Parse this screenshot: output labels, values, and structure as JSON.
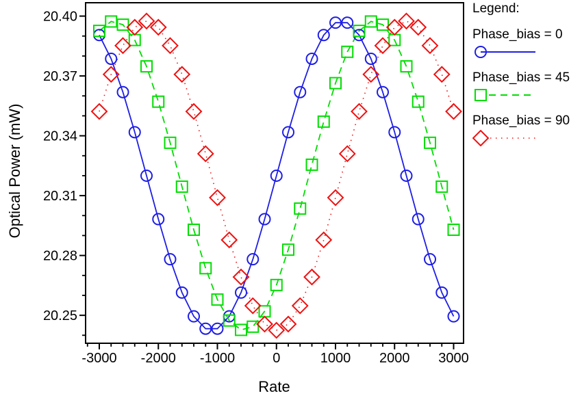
{
  "chart_data": {
    "type": "line",
    "title": "",
    "xlabel": "Rate",
    "ylabel": "Optical Power (mW)",
    "legend_title": "Legend:",
    "legend_position": "right",
    "grid": false,
    "background_color": "#ffffff",
    "axis_color": "#000000",
    "xlim": [
      -3232,
      3168
    ],
    "ylim": [
      20.236,
      20.4067
    ],
    "x_ticks": [
      -3000,
      -2000,
      -1000,
      0,
      1000,
      2000,
      3000
    ],
    "x_tick_labels": [
      "-3000",
      "-2000",
      "-1000",
      "0",
      "1000",
      "2000",
      "3000"
    ],
    "x_minor_step": 200,
    "y_ticks": [
      20.25,
      20.28,
      20.31,
      20.34,
      20.37,
      20.4
    ],
    "y_tick_labels": [
      "20.25",
      "20.28",
      "20.31",
      "20.34",
      "20.37",
      "20.40"
    ],
    "y_minor_step": 0.01,
    "x": [
      -3000,
      -2800,
      -2600,
      -2400,
      -2200,
      -2000,
      -1800,
      -1600,
      -1400,
      -1200,
      -1000,
      -800,
      -600,
      -400,
      -200,
      0,
      200,
      400,
      600,
      800,
      1000,
      1200,
      1400,
      1600,
      1800,
      2000,
      2200,
      2400,
      2600,
      2800,
      3000
    ],
    "series": [
      {
        "name": "Phase_bias = 0",
        "color": "#1e1ee4",
        "marker": "circle",
        "line": "solid",
        "values": [
          20.3905,
          20.3786,
          20.3619,
          20.3418,
          20.32,
          20.2982,
          20.2781,
          20.2614,
          20.2495,
          20.2433,
          20.2433,
          20.2495,
          20.2614,
          20.2781,
          20.2982,
          20.32,
          20.3418,
          20.3619,
          20.3786,
          20.3905,
          20.3967,
          20.3967,
          20.3905,
          20.3786,
          20.3619,
          20.3418,
          20.32,
          20.2982,
          20.2781,
          20.2614,
          20.2495
        ]
      },
      {
        "name": "Phase_bias = 45",
        "color": "#00dd00",
        "marker": "square",
        "line": "dashed",
        "values": [
          20.3926,
          20.3973,
          20.3957,
          20.388,
          20.3748,
          20.3571,
          20.3365,
          20.3145,
          20.2929,
          20.2736,
          20.2579,
          20.2474,
          20.2427,
          20.2443,
          20.252,
          20.2652,
          20.2829,
          20.3035,
          20.3255,
          20.3471,
          20.3664,
          20.3821,
          20.3926,
          20.3973,
          20.3957,
          20.388,
          20.3748,
          20.3571,
          20.3365,
          20.3145,
          20.2929
        ]
      },
      {
        "name": "Phase_bias = 90",
        "color": "#ee1111",
        "marker": "diamond",
        "line": "dotted",
        "values": [
          20.3522,
          20.3708,
          20.3852,
          20.3944,
          20.3975,
          20.3944,
          20.3852,
          20.3708,
          20.3522,
          20.331,
          20.309,
          20.2878,
          20.2692,
          20.2548,
          20.2456,
          20.2425,
          20.2456,
          20.2548,
          20.2692,
          20.2878,
          20.309,
          20.331,
          20.3522,
          20.3708,
          20.3852,
          20.3944,
          20.3975,
          20.3944,
          20.3852,
          20.3708,
          20.3522
        ]
      }
    ]
  }
}
